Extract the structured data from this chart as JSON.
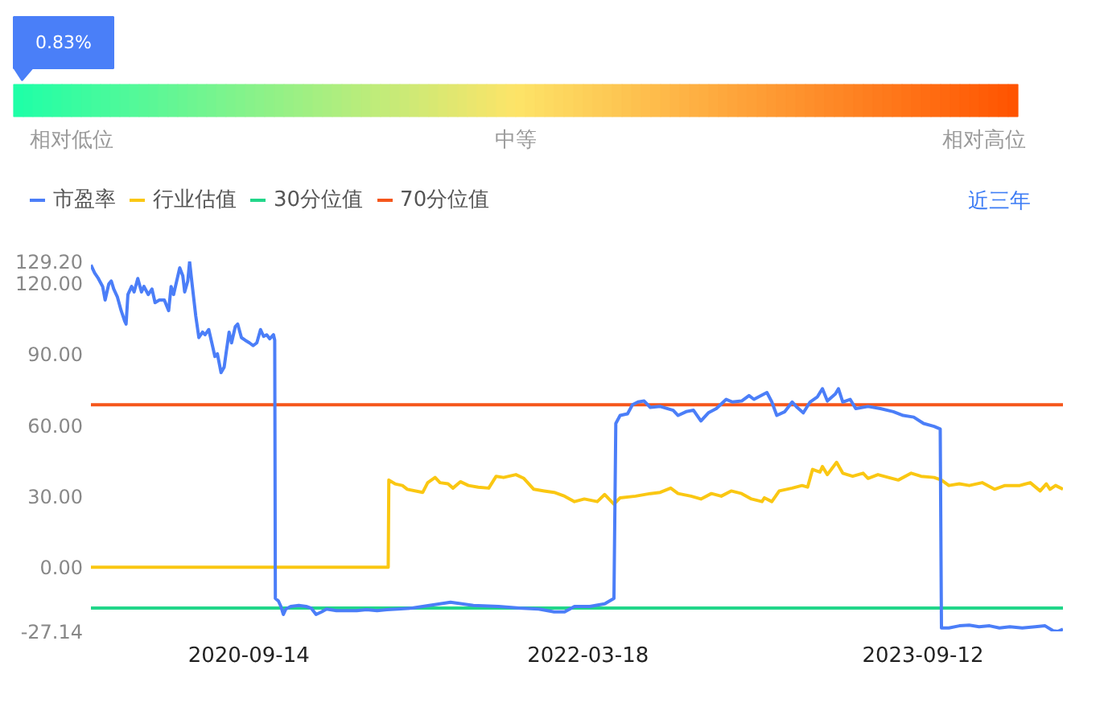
{
  "chart_data": [
    {
      "type": "other",
      "values": [
        0.83
      ],
      "value_labels": [
        "0.83%"
      ],
      "colors": [
        "#4a7ff8"
      ],
      "annotations": [
        "相对低位",
        "中等",
        "相对高位"
      ]
    },
    {
      "type": "line",
      "series": [
        {
          "name": "市盈率",
          "color": "#4b7ef8",
          "x": [
            "2020-01-02",
            "2020-01-08",
            "2020-01-14",
            "2020-01-21",
            "2020-01-25",
            "2020-01-31",
            "2020-02-04",
            "2020-02-08",
            "2020-02-14",
            "2020-02-20",
            "2020-02-26",
            "2020-02-28",
            "2020-03-02",
            "2020-03-08",
            "2020-03-12",
            "2020-03-18",
            "2020-03-24",
            "2020-03-28",
            "2020-04-04",
            "2020-04-10",
            "2020-04-15",
            "2020-04-22",
            "2020-04-30",
            "2020-05-07",
            "2020-05-11",
            "2020-05-15",
            "2020-05-18",
            "2020-05-25",
            "2020-05-30",
            "2020-06-02",
            "2020-06-07",
            "2020-06-10",
            "2020-06-14",
            "2020-06-20",
            "2020-06-25",
            "2020-07-01",
            "2020-07-05",
            "2020-07-11",
            "2020-07-16",
            "2020-07-21",
            "2020-07-25",
            "2020-07-31",
            "2020-08-05",
            "2020-08-08",
            "2020-08-13",
            "2020-08-17",
            "2020-08-23",
            "2020-08-27",
            "2020-09-02",
            "2020-09-08",
            "2020-09-15",
            "2020-09-21",
            "2020-09-27",
            "2020-10-03",
            "2020-10-08",
            "2020-10-13",
            "2020-10-18",
            "2020-10-24",
            "2020-10-26",
            "2020-10-27",
            "2020-11-01",
            "2020-11-05",
            "2020-11-09",
            "2020-11-13",
            "2020-11-21",
            "2020-12-04",
            "2020-12-16",
            "2020-12-24",
            "2021-01-01",
            "2021-01-10",
            "2021-01-18",
            "2021-02-03",
            "2021-02-20",
            "2021-03-08",
            "2021-03-24",
            "2021-04-10",
            "2021-04-26",
            "2021-05-13",
            "2021-06-06",
            "2021-06-23",
            "2021-08-07",
            "2021-09-13",
            "2021-10-24",
            "2021-11-26",
            "2021-12-28",
            "2022-01-22",
            "2022-02-08",
            "2022-02-24",
            "2022-03-21",
            "2022-04-14",
            "2022-04-29",
            "2022-05-02",
            "2022-05-09",
            "2022-05-21",
            "2022-05-29",
            "2022-06-07",
            "2022-06-17",
            "2022-06-27",
            "2022-07-13",
            "2022-08-03",
            "2022-08-11",
            "2022-08-24",
            "2022-09-05",
            "2022-09-17",
            "2022-09-29",
            "2022-10-12",
            "2022-10-28",
            "2022-11-07",
            "2022-11-22",
            "2022-12-04",
            "2022-12-12",
            "2022-12-20",
            "2023-01-02",
            "2023-01-10",
            "2023-01-18",
            "2023-01-31",
            "2023-02-12",
            "2023-02-20",
            "2023-03-02",
            "2023-03-13",
            "2023-03-25",
            "2023-04-02",
            "2023-04-10",
            "2023-04-23",
            "2023-04-28",
            "2023-05-05",
            "2023-05-17",
            "2023-05-26",
            "2023-06-15",
            "2023-07-05",
            "2023-07-26",
            "2023-08-11",
            "2023-08-28",
            "2023-09-13",
            "2023-09-30",
            "2023-10-10",
            "2023-10-12",
            "2023-10-24",
            "2023-11-10",
            "2023-11-26",
            "2023-12-12",
            "2023-12-29",
            "2024-01-14",
            "2024-01-31",
            "2024-02-20",
            "2024-03-12",
            "2024-03-28",
            "2024-04-10",
            "2024-04-18",
            "2024-04-26"
          ],
          "values": [
            127.7,
            124.3,
            122.0,
            118.6,
            112.9,
            119.7,
            120.9,
            117.5,
            114.1,
            108.4,
            103.8,
            102.7,
            115.2,
            118.6,
            116.3,
            122.0,
            116.3,
            118.6,
            115.2,
            117.5,
            111.8,
            112.9,
            112.9,
            108.4,
            118.6,
            115.2,
            118.6,
            126.5,
            123.1,
            116.3,
            120.9,
            129.0,
            119.7,
            106.1,
            97.0,
            99.3,
            98.2,
            100.4,
            94.8,
            89.0,
            90.2,
            82.2,
            84.5,
            90.2,
            99.3,
            94.8,
            101.6,
            102.7,
            97.0,
            95.9,
            94.8,
            93.6,
            94.8,
            100.4,
            97.5,
            98.2,
            96.5,
            98.2,
            95.9,
            -13.2,
            -14.3,
            -16.6,
            -20.0,
            -17.7,
            -16.6,
            -16.2,
            -16.6,
            -17.3,
            -20.0,
            -18.9,
            -17.7,
            -18.4,
            -18.4,
            -18.4,
            -18.0,
            -18.4,
            -18.0,
            -17.7,
            -17.3,
            -16.6,
            -14.8,
            -16.2,
            -16.6,
            -17.3,
            -17.7,
            -18.9,
            -18.9,
            -16.6,
            -16.6,
            -15.5,
            -13.2,
            60.7,
            64.1,
            64.8,
            68.6,
            69.8,
            70.2,
            67.5,
            67.9,
            66.3,
            64.1,
            65.7,
            66.3,
            61.8,
            65.2,
            67.0,
            70.9,
            69.8,
            70.2,
            72.5,
            70.9,
            72.0,
            73.8,
            69.8,
            64.1,
            65.7,
            69.8,
            67.5,
            65.2,
            69.8,
            72.0,
            75.4,
            70.2,
            73.2,
            75.4,
            69.8,
            70.9,
            67.0,
            67.9,
            67.0,
            65.7,
            64.1,
            63.4,
            60.7,
            59.5,
            58.4,
            -25.7,
            -25.7,
            -24.8,
            -24.5,
            -25.2,
            -24.8,
            -25.7,
            -25.2,
            -25.7,
            -25.2,
            -24.8,
            -26.9,
            -27.1,
            -26.2
          ]
        },
        {
          "name": "行业估值",
          "color": "#fac712",
          "x": [
            "2020-01-02",
            "2021-04-28",
            "2021-04-29",
            "2021-05-09",
            "2021-05-21",
            "2021-05-29",
            "2021-06-23",
            "2021-07-01",
            "2021-07-13",
            "2021-07-21",
            "2021-08-03",
            "2021-08-11",
            "2021-08-23",
            "2021-09-05",
            "2021-09-21",
            "2021-10-08",
            "2021-10-20",
            "2021-11-01",
            "2021-11-21",
            "2021-12-04",
            "2021-12-20",
            "2022-01-06",
            "2022-01-22",
            "2022-02-08",
            "2022-02-24",
            "2022-03-12",
            "2022-04-02",
            "2022-04-14",
            "2022-04-29",
            "2022-05-09",
            "2022-06-03",
            "2022-06-27",
            "2022-07-13",
            "2022-07-30",
            "2022-08-11",
            "2022-09-01",
            "2022-09-17",
            "2022-10-04",
            "2022-10-20",
            "2022-11-05",
            "2022-11-22",
            "2022-12-08",
            "2022-12-25",
            "2022-12-29",
            "2023-01-10",
            "2023-01-22",
            "2023-02-12",
            "2023-02-28",
            "2023-03-09",
            "2023-03-17",
            "2023-03-29",
            "2023-04-02",
            "2023-04-10",
            "2023-04-25",
            "2023-05-05",
            "2023-05-21",
            "2023-06-07",
            "2023-06-15",
            "2023-07-01",
            "2023-07-18",
            "2023-08-03",
            "2023-08-24",
            "2023-09-09",
            "2023-09-30",
            "2023-10-12",
            "2023-10-24",
            "2023-11-10",
            "2023-11-26",
            "2023-12-17",
            "2024-01-06",
            "2024-01-23",
            "2024-02-16",
            "2024-03-04",
            "2024-03-20",
            "2024-03-30",
            "2024-04-05",
            "2024-04-14",
            "2024-04-26"
          ],
          "values": [
            0.0,
            0.0,
            36.8,
            35.2,
            34.5,
            32.9,
            31.6,
            35.7,
            37.9,
            35.7,
            35.2,
            33.4,
            36.1,
            34.5,
            33.8,
            33.4,
            38.4,
            37.9,
            39.1,
            37.5,
            32.9,
            32.2,
            31.6,
            30.0,
            27.7,
            28.8,
            27.7,
            30.7,
            26.6,
            29.3,
            30.0,
            31.1,
            31.6,
            33.4,
            31.1,
            30.0,
            28.8,
            31.1,
            30.0,
            32.2,
            31.1,
            28.8,
            27.7,
            29.3,
            27.7,
            32.2,
            33.4,
            34.5,
            33.8,
            41.3,
            40.2,
            42.5,
            39.1,
            44.3,
            39.7,
            38.4,
            39.7,
            37.5,
            39.1,
            37.9,
            36.8,
            39.7,
            38.4,
            37.9,
            36.8,
            34.5,
            35.2,
            34.5,
            35.7,
            32.9,
            34.5,
            34.5,
            35.7,
            32.2,
            35.2,
            32.9,
            34.5,
            32.9
          ]
        },
        {
          "name": "30分位值",
          "color": "#22d68a",
          "x": [
            "2020-01-02",
            "2024-04-26"
          ],
          "values": [
            -17.3,
            -17.3
          ]
        },
        {
          "name": "70分位值",
          "color": "#f5561b",
          "x": [
            "2020-01-02",
            "2024-04-26"
          ],
          "values": [
            68.6,
            68.6
          ]
        }
      ],
      "xlim": [
        "2020-01-02",
        "2024-04-26"
      ],
      "xticks": [
        "2020-09-14",
        "2022-03-18",
        "2023-09-12"
      ],
      "ylim": [
        -27.14,
        129.2
      ],
      "yticks": [
        {
          "value": -27.14,
          "label": "-27.14"
        },
        {
          "value": 0,
          "label": "0.00"
        },
        {
          "value": 30,
          "label": "30.00"
        },
        {
          "value": 60,
          "label": "60.00"
        },
        {
          "value": 90,
          "label": "90.00"
        },
        {
          "value": 120,
          "label": "120.00"
        },
        {
          "value": 129.2,
          "label": "129.20"
        }
      ],
      "legend": "top left",
      "annotations": [
        "近三年"
      ]
    }
  ]
}
